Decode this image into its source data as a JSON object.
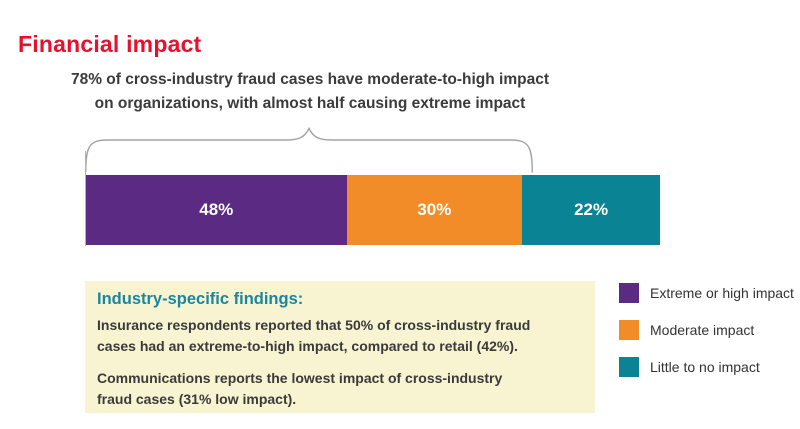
{
  "page": {
    "title": "Financial impact",
    "title_color": "#e8112d",
    "background": "#ffffff"
  },
  "chart_data": {
    "type": "bar",
    "subtype": "stacked-horizontal-single-bar",
    "title": "78% of cross-industry fraud cases have moderate-to-high impact on organizations, with almost half causing extreme impact",
    "title_lines": [
      "78% of cross-industry fraud cases have moderate-to-high impact",
      "on organizations, with almost half causing extreme impact"
    ],
    "categories": [
      "Extreme or high impact",
      "Moderate impact",
      "Little to no impact"
    ],
    "values": [
      48,
      30,
      22
    ],
    "segments": [
      {
        "name": "Extreme or high impact",
        "value": 48,
        "label": "48%",
        "color": "#5b2a82"
      },
      {
        "name": "Moderate impact",
        "value": 30,
        "label": "30%",
        "color": "#f28c28"
      },
      {
        "name": "Little to no impact",
        "value": 22,
        "label": "22%",
        "color": "#0a8394"
      }
    ],
    "brace_annotation": {
      "covers_segments": [
        "Extreme or high impact",
        "Moderate impact"
      ],
      "covered_total_percent": 78,
      "color": "#a3a3a3"
    },
    "legend": {
      "position": "bottom-right",
      "entries": [
        {
          "label": "Extreme or high impact",
          "color": "#5b2a82"
        },
        {
          "label": "Moderate impact",
          "color": "#f28c28"
        },
        {
          "label": "Little to no impact",
          "color": "#0a8394"
        }
      ]
    }
  },
  "findings_box": {
    "heading": "Industry-specific findings:",
    "heading_color": "#1887a0",
    "background": "#f8f3d0",
    "paragraphs": [
      {
        "text": "Insurance respondents reported that 50% of cross-industry fraud cases had an extreme-to-high impact, compared to retail (42%).",
        "lines": [
          "Insurance respondents reported that 50% of cross-industry fraud",
          "cases had an extreme-to-high impact, compared to retail (42%)."
        ]
      },
      {
        "text": "Communications reports the lowest impact of cross-industry fraud cases (31% low impact).",
        "lines": [
          "Communications reports the lowest impact of cross-industry",
          "fraud cases (31% low impact)."
        ]
      }
    ]
  }
}
